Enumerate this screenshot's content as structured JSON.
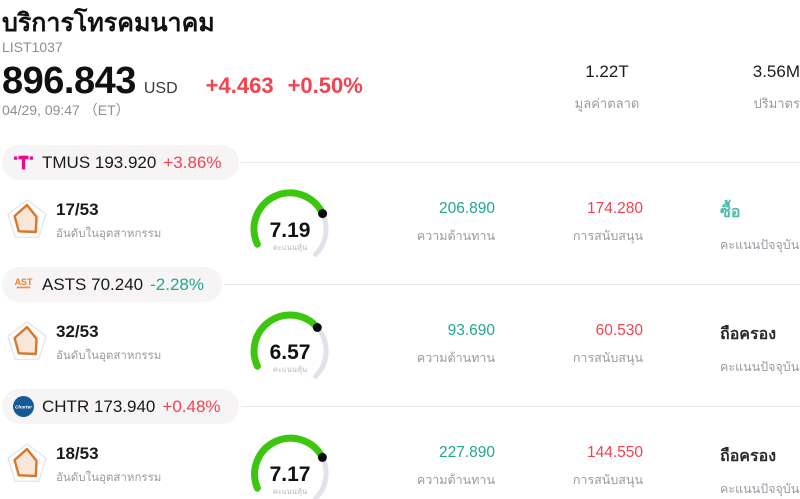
{
  "header": {
    "title": "บริการโทรคมนาคม",
    "list_id": "LIST1037",
    "price": "896.843",
    "currency": "USD",
    "change": "+4.463",
    "change_percent": "+0.50%",
    "timestamp": "04/29, 09:47 （ET）",
    "stats": [
      {
        "value": "1.22T",
        "label": "มูลค่าตลาด"
      },
      {
        "value": "3.56M",
        "label": "ปริมาตร"
      }
    ]
  },
  "labels": {
    "rank": "อันดับในอุตสาหกรรม",
    "gauge": "คะแนนหุ้น",
    "resistance": "ความต้านทาน",
    "support": "การสนับสนุน",
    "signal": "คะแนนปัจจุบัน"
  },
  "colors": {
    "up": "#f4424f",
    "down": "#21a88e",
    "resistance": "#21a88e",
    "support": "#f4424f",
    "signal_buy": "#4ebcaa",
    "signal_hold": "#2b2b2b",
    "gauge_green": "#3cc70e",
    "gauge_track": "#e1e2eb",
    "gauge_dot": "#0a0a0a",
    "radar_orange": "#d9782a",
    "logo_tmus": "#ea0a8e",
    "logo_asts": "#f07c23",
    "logo_chtr": "#155a96"
  },
  "gauge_max": 10,
  "stocks": [
    {
      "symbol": "TMUS",
      "price": "193.920",
      "change_percent": "+3.86%",
      "direction": "up",
      "logo": "tmus",
      "rank": "17/53",
      "score": 7.19,
      "score_text": "7.19",
      "resistance": "206.890",
      "support": "174.280",
      "signal": "ซื้อ",
      "signal_type": "buy"
    },
    {
      "symbol": "ASTS",
      "price": "70.240",
      "change_percent": "-2.28%",
      "direction": "down",
      "logo": "asts",
      "rank": "32/53",
      "score": 6.57,
      "score_text": "6.57",
      "resistance": "93.690",
      "support": "60.530",
      "signal": "ถือครอง",
      "signal_type": "hold"
    },
    {
      "symbol": "CHTR",
      "price": "173.940",
      "change_percent": "+0.48%",
      "direction": "up",
      "logo": "chtr",
      "rank": "18/53",
      "score": 7.17,
      "score_text": "7.17",
      "resistance": "227.890",
      "support": "144.550",
      "signal": "ถือครอง",
      "signal_type": "hold"
    }
  ]
}
